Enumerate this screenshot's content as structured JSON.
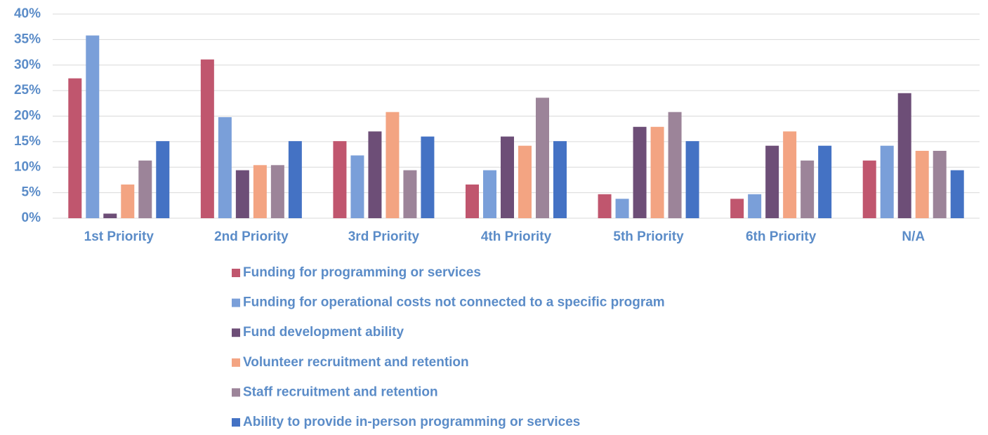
{
  "chart_data": {
    "type": "bar",
    "categories": [
      "1st Priority",
      "2nd Priority",
      "3rd Priority",
      "4th Priority",
      "5th Priority",
      "6th Priority",
      "N/A"
    ],
    "series": [
      {
        "name": "Funding for programming or services",
        "color": "#c0566e",
        "values": [
          27.4,
          31.1,
          15.1,
          6.6,
          4.7,
          3.8,
          11.3
        ]
      },
      {
        "name": "Funding for operational costs not connected to a specific program",
        "color": "#7a9fd9",
        "values": [
          35.8,
          19.8,
          12.3,
          9.4,
          3.8,
          4.7,
          14.2
        ]
      },
      {
        "name": "Fund development ability",
        "color": "#6d4e77",
        "values": [
          0.9,
          9.4,
          17.0,
          16.0,
          17.9,
          14.2,
          24.5
        ]
      },
      {
        "name": "Volunteer recruitment and retention",
        "color": "#f3a482",
        "values": [
          6.6,
          10.4,
          20.8,
          14.2,
          17.9,
          17.0,
          13.2
        ]
      },
      {
        "name": "Staff recruitment and retention",
        "color": "#9c8499",
        "values": [
          11.3,
          10.4,
          9.4,
          23.6,
          20.8,
          11.3,
          13.2
        ]
      },
      {
        "name": "Ability to provide in-person programming or services",
        "color": "#4472c4",
        "values": [
          15.1,
          15.1,
          16.0,
          15.1,
          15.1,
          14.2,
          9.4
        ]
      }
    ],
    "ylim": [
      0,
      40
    ],
    "yticks": [
      {
        "value": 0,
        "label": "0%"
      },
      {
        "value": 5,
        "label": "5%"
      },
      {
        "value": 10,
        "label": "10%"
      },
      {
        "value": 15,
        "label": "15%"
      },
      {
        "value": 20,
        "label": "20%"
      },
      {
        "value": 25,
        "label": "25%"
      },
      {
        "value": 30,
        "label": "30%"
      },
      {
        "value": 35,
        "label": "35%"
      },
      {
        "value": 40,
        "label": "40%"
      }
    ],
    "grid": true,
    "legend": "bottom"
  }
}
